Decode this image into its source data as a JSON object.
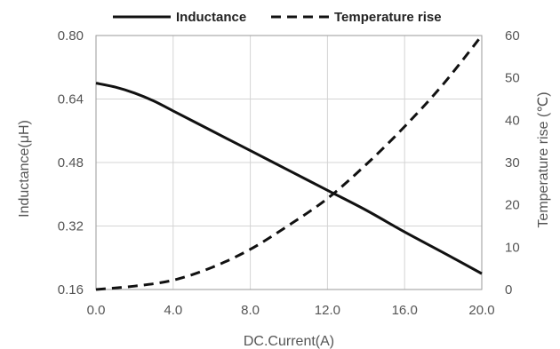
{
  "chart_data": {
    "type": "line",
    "xlabel": "DC.Current(A)",
    "ylabel_left": "Inductance(μH)",
    "ylabel_right": "Temperature rise (℃)",
    "xlim": [
      0,
      20
    ],
    "ylim_left": [
      0.16,
      0.8
    ],
    "ylim_right": [
      0,
      60
    ],
    "x_ticks": [
      "0.0",
      "4.0",
      "8.0",
      "12.0",
      "16.0",
      "20.0"
    ],
    "y_left_ticks": [
      "0.16",
      "0.32",
      "0.48",
      "0.64",
      "0.80"
    ],
    "y_right_ticks": [
      "0",
      "10",
      "20",
      "30",
      "40",
      "50",
      "60"
    ],
    "grid": true,
    "legend_position": "top",
    "series": [
      {
        "name": "Inductance",
        "axis": "left",
        "style": "solid",
        "color": "#111111",
        "x": [
          0,
          1,
          2,
          3,
          4,
          6,
          8,
          10,
          12,
          14,
          16,
          18,
          20
        ],
        "y": [
          0.68,
          0.67,
          0.655,
          0.635,
          0.61,
          0.56,
          0.51,
          0.46,
          0.41,
          0.36,
          0.305,
          0.253,
          0.2
        ]
      },
      {
        "name": "Temperature rise",
        "axis": "right",
        "style": "dashed",
        "color": "#111111",
        "x": [
          0,
          2,
          4,
          6,
          8,
          10,
          12,
          14,
          16,
          18,
          20
        ],
        "y": [
          0,
          0.8,
          2.2,
          5.2,
          9.5,
          15.2,
          21.5,
          29.5,
          38.5,
          48.5,
          60
        ]
      }
    ]
  }
}
